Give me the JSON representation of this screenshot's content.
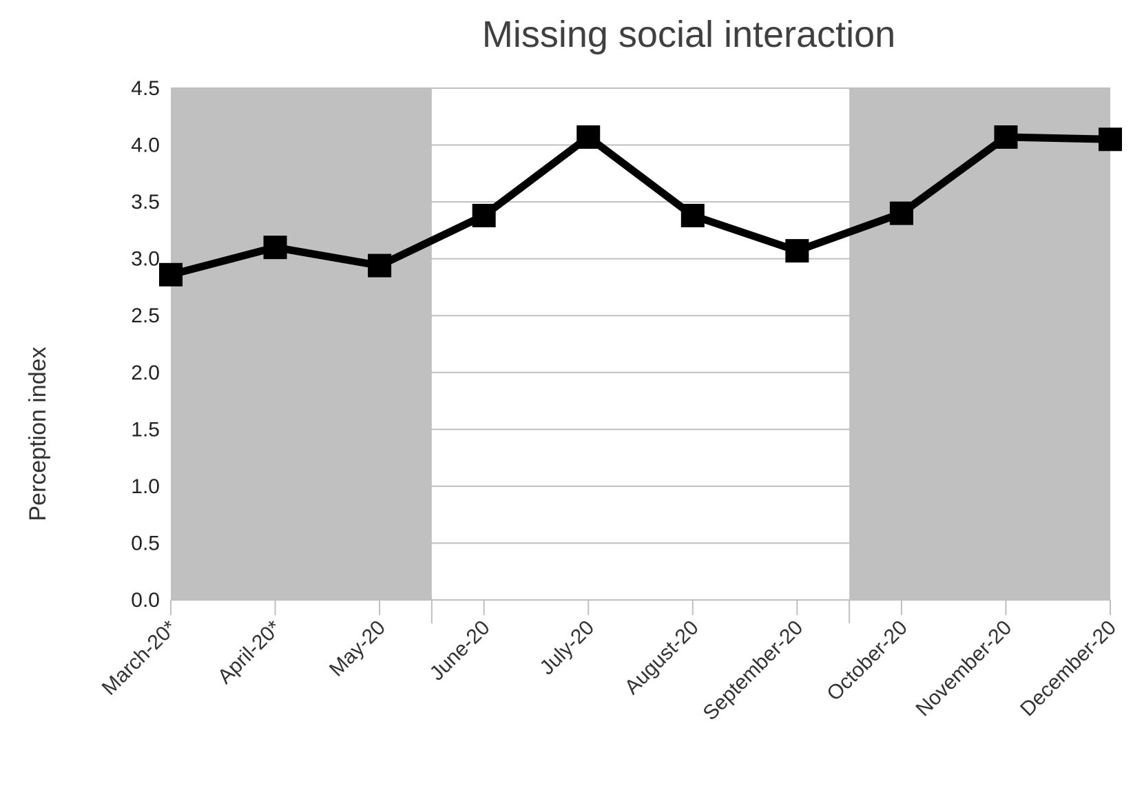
{
  "chart_data": {
    "type": "line",
    "title": "Missing social interaction",
    "xlabel": "",
    "ylabel": "Perception index",
    "categories": [
      "March-20*",
      "April-20*",
      "May-20",
      "June-20",
      "July-20",
      "August-20",
      "September-20",
      "October-20",
      "November-20",
      "December-20"
    ],
    "series": [
      {
        "values": [
          2.86,
          3.1,
          2.94,
          3.38,
          4.07,
          3.38,
          3.07,
          3.4,
          4.07,
          4.05
        ],
        "color": "#000000",
        "marker": "square"
      }
    ],
    "ylim": [
      0,
      4.5
    ],
    "yticks": [
      "0.0",
      "0.5",
      "1.0",
      "1.5",
      "2.0",
      "2.5",
      "3.0",
      "3.5",
      "4.0",
      "4.5"
    ],
    "grid": "horizontal",
    "shaded_periods": [
      {
        "from": "March-20*",
        "to": "May-20"
      },
      {
        "from": "October-20",
        "to": "December-20"
      }
    ],
    "shade_color": "#c0c0c0",
    "gridline_color": "#bfbfbf",
    "line_color": "#000000"
  }
}
